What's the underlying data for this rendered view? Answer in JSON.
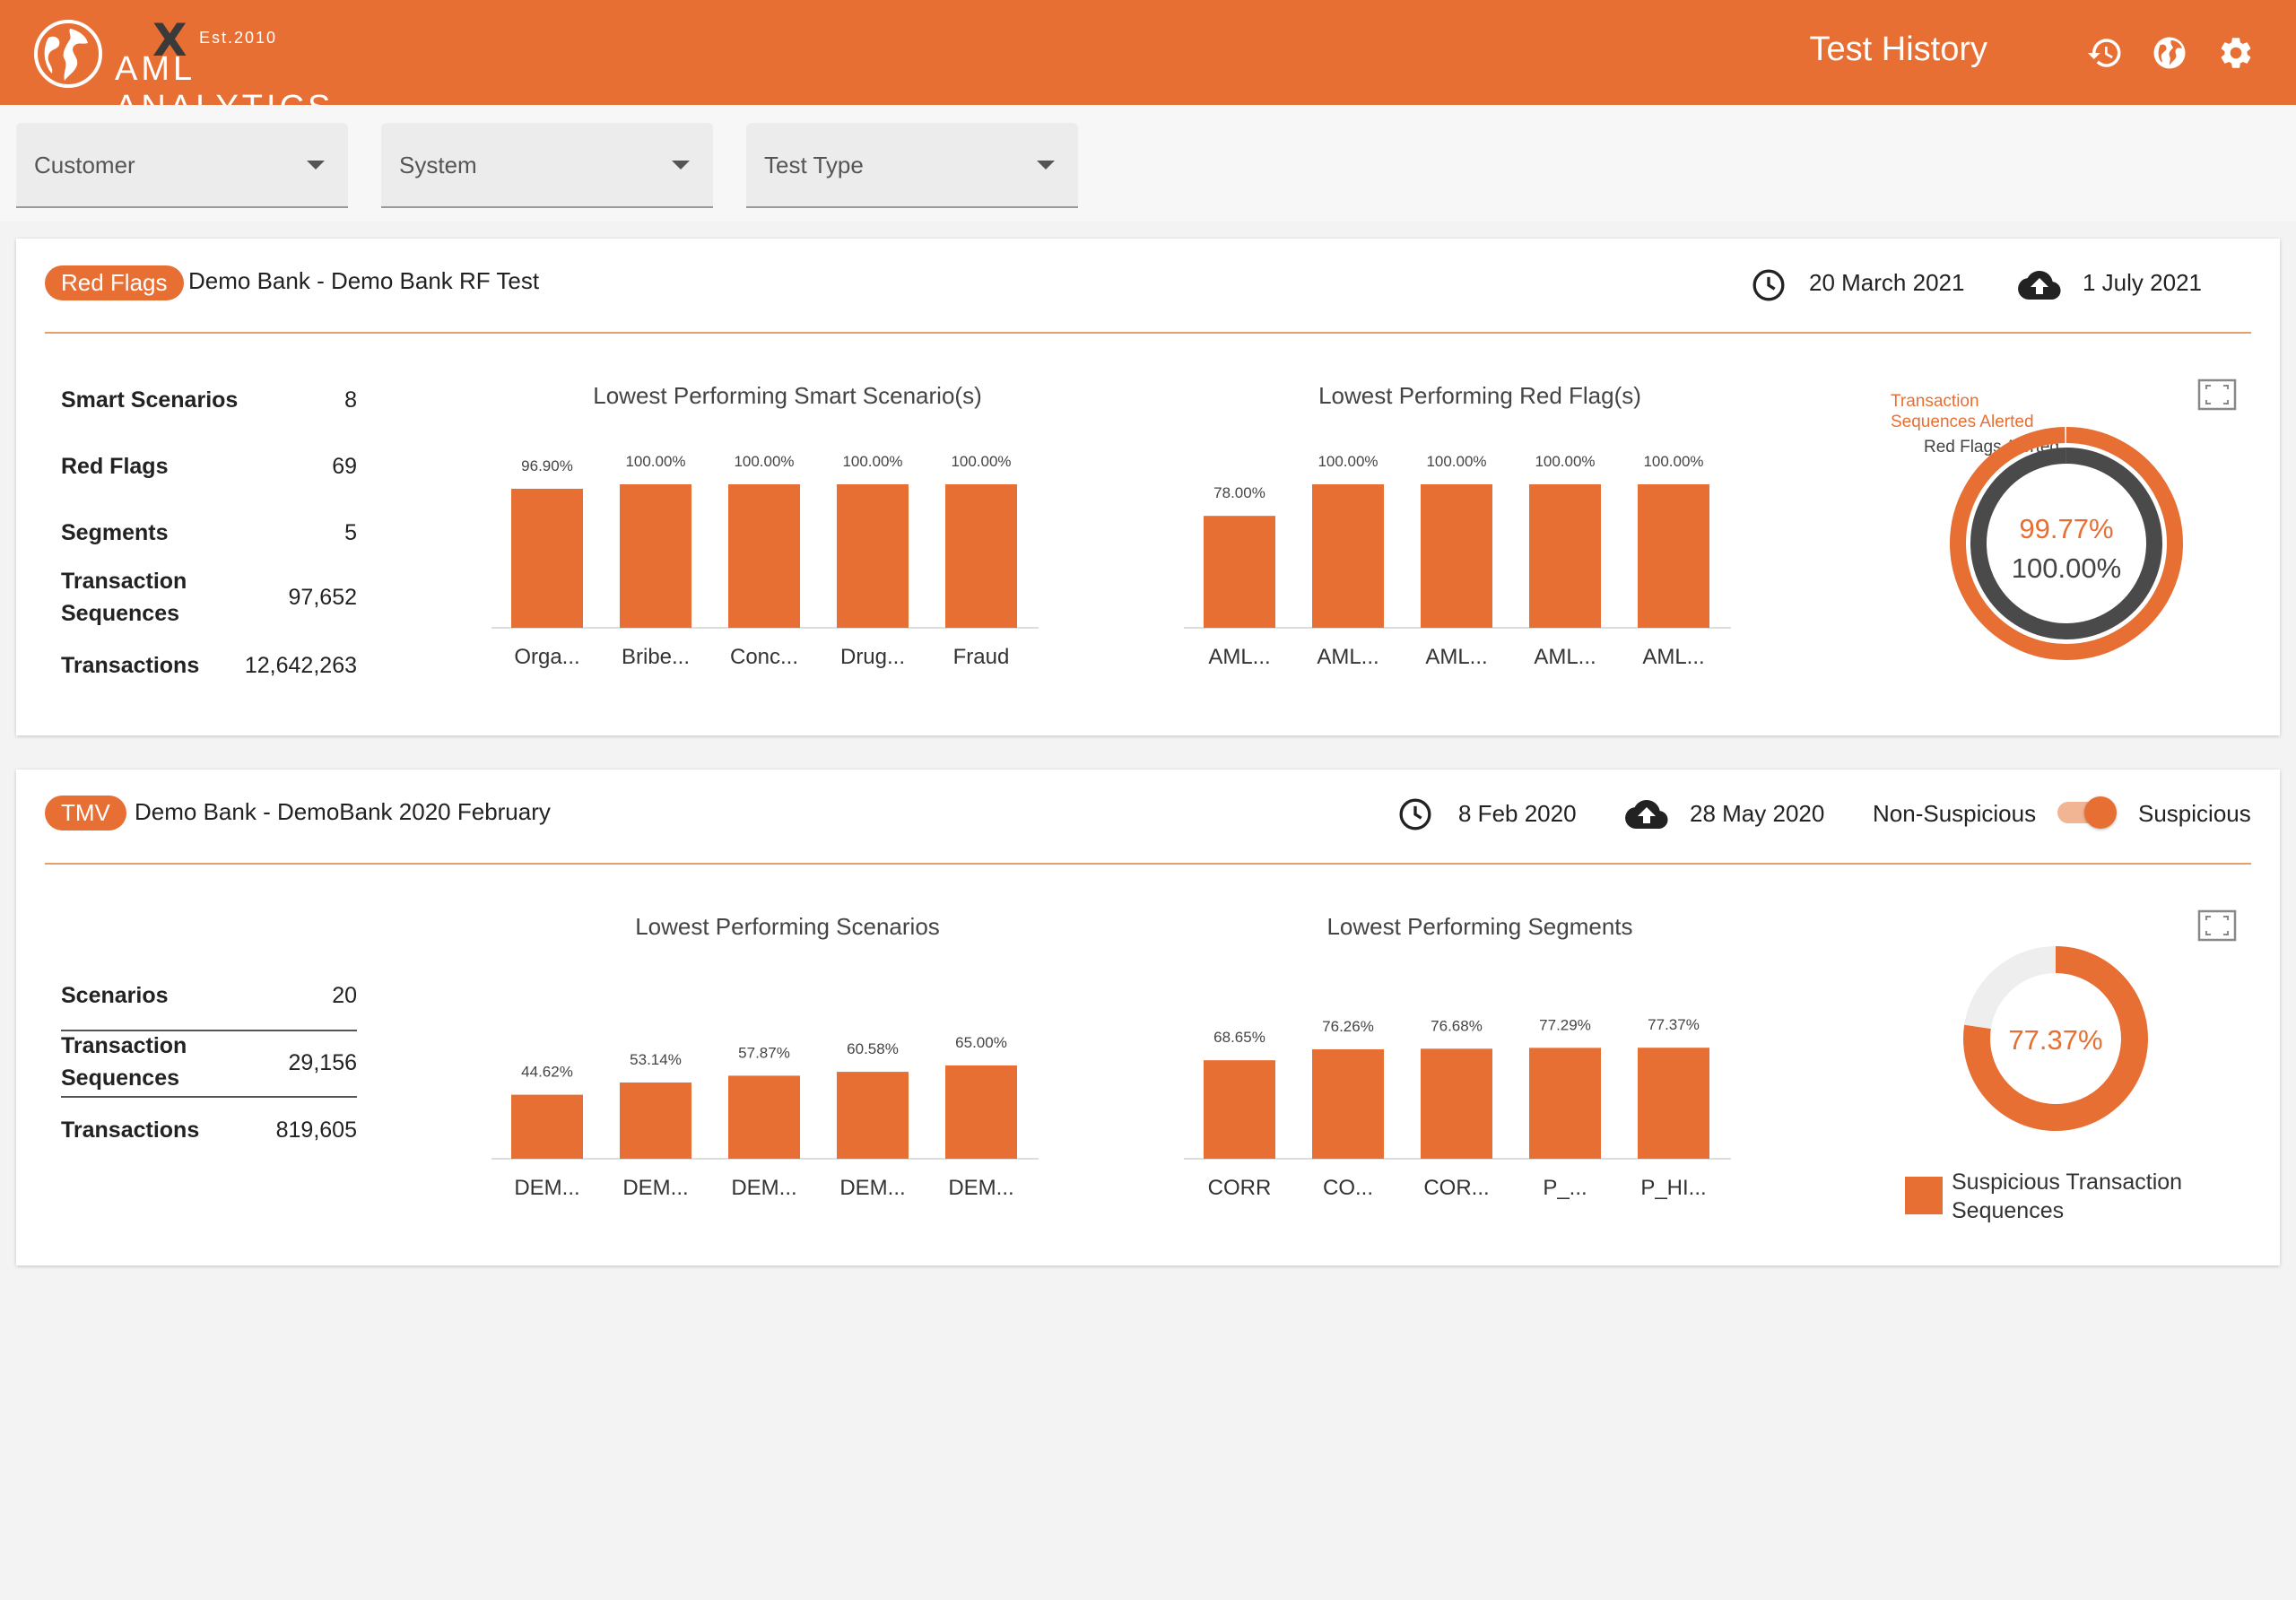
{
  "header": {
    "brand": "AML ANALYTICS",
    "established": "Est.2010",
    "title": "Test History",
    "icons": [
      "history-icon",
      "globe-icon",
      "settings-icon"
    ]
  },
  "filters": [
    {
      "label": "Customer"
    },
    {
      "label": "System"
    },
    {
      "label": "Test Type"
    }
  ],
  "colors": {
    "accent": "#e86f33",
    "dark": "#4a4a4a",
    "track": "#eeeeee"
  },
  "cards": [
    {
      "badge": "Red Flags",
      "title": "Demo Bank - Demo Bank RF Test",
      "test_date": "20 March 2021",
      "upload_date": "1 July 2021",
      "stats": [
        {
          "label": "Smart Scenarios",
          "value": "8"
        },
        {
          "label": "Red Flags",
          "value": "69"
        },
        {
          "label": "Segments",
          "value": "5"
        },
        {
          "label": "Transaction Sequences",
          "value": "97,652"
        },
        {
          "label": "Transactions",
          "value": "12,642,263"
        }
      ],
      "donut": {
        "outer_label": "Transaction Sequences Alerted",
        "inner_label": "Red Flags Alerted",
        "outer_value": "99.77%",
        "inner_value": "100.00%"
      }
    },
    {
      "badge": "TMV",
      "title": "Demo Bank - DemoBank 2020 February",
      "test_date": "8 Feb 2020",
      "upload_date": "28 May 2020",
      "toggle_left": "Non-Suspicious",
      "toggle_right": "Suspicious",
      "stats": [
        {
          "label": "Scenarios",
          "value": "20"
        },
        {
          "label": "Transaction Sequences",
          "value": "29,156"
        },
        {
          "label": "Transactions",
          "value": "819,605"
        }
      ],
      "donut": {
        "value": "77.37%",
        "legend": "Suspicious Transaction Sequences"
      }
    }
  ],
  "chart_data": [
    {
      "type": "bar",
      "title": "Lowest Performing Smart Scenario(s)",
      "categories": [
        "Orga...",
        "Bribe...",
        "Conc...",
        "Drug...",
        "Fraud"
      ],
      "values": [
        96.9,
        100.0,
        100.0,
        100.0,
        100.0
      ],
      "labels": [
        "96.90%",
        "100.00%",
        "100.00%",
        "100.00%",
        "100.00%"
      ],
      "ylim": [
        0,
        100
      ]
    },
    {
      "type": "bar",
      "title": "Lowest Performing Red Flag(s)",
      "categories": [
        "AML...",
        "AML...",
        "AML...",
        "AML...",
        "AML..."
      ],
      "values": [
        78.0,
        100.0,
        100.0,
        100.0,
        100.0
      ],
      "labels": [
        "78.00%",
        "100.00%",
        "100.00%",
        "100.00%",
        "100.00%"
      ],
      "ylim": [
        0,
        100
      ]
    },
    {
      "type": "pie",
      "series": [
        {
          "values": [
            99.77
          ]
        },
        {
          "values": [
            100.0
          ]
        }
      ]
    },
    {
      "type": "bar",
      "title": "Lowest Performing Scenarios",
      "categories": [
        "DEM...",
        "DEM...",
        "DEM...",
        "DEM...",
        "DEM..."
      ],
      "values": [
        44.62,
        53.14,
        57.87,
        60.58,
        65.0
      ],
      "labels": [
        "44.62%",
        "53.14%",
        "57.87%",
        "60.58%",
        "65.00%"
      ],
      "ylim": [
        0,
        100
      ]
    },
    {
      "type": "bar",
      "title": "Lowest Performing Segments",
      "categories": [
        "CORR",
        "CO...",
        "COR...",
        "P_...",
        "P_HI..."
      ],
      "values": [
        68.65,
        76.26,
        76.68,
        77.29,
        77.37
      ],
      "labels": [
        "68.65%",
        "76.26%",
        "76.68%",
        "77.29%",
        "77.37%"
      ],
      "ylim": [
        0,
        100
      ]
    },
    {
      "type": "pie",
      "values": [
        77.37
      ]
    }
  ]
}
